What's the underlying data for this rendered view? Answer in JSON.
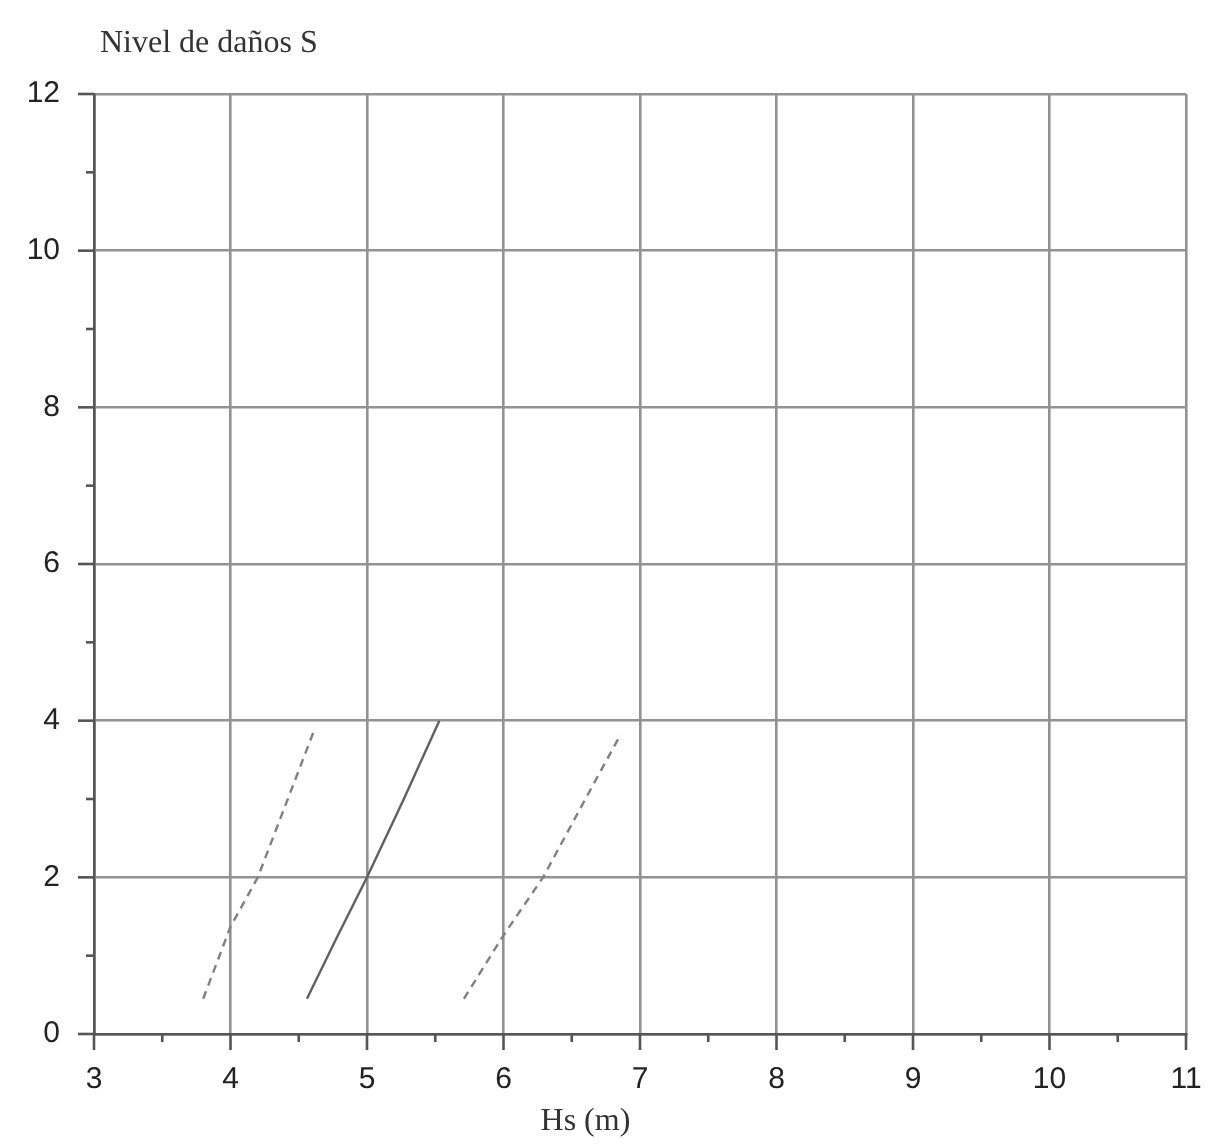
{
  "chart_data": {
    "type": "line",
    "xlabel": "Hs (m)",
    "ylabel": "Nivel de daños S",
    "xlim": [
      3,
      11
    ],
    "ylim": [
      0,
      12
    ],
    "xticks": [
      3,
      {
        "value": 3.5,
        "label": null
      },
      4,
      {
        "value": 4.5,
        "label": null
      },
      5,
      {
        "value": 5.5,
        "label": null
      },
      6,
      {
        "value": 6.5,
        "label": null
      },
      7,
      {
        "value": 7.5,
        "label": null
      },
      8,
      {
        "value": 8.5,
        "label": null
      },
      9,
      {
        "value": 9.5,
        "label": null
      },
      10,
      {
        "value": 10.5,
        "label": null
      },
      11
    ],
    "yticks": [
      0,
      {
        "value": 1,
        "label": null
      },
      2,
      {
        "value": 3,
        "label": null
      },
      4,
      {
        "value": 5,
        "label": null
      },
      6,
      {
        "value": 7,
        "label": null
      },
      8,
      {
        "value": 9,
        "label": null
      },
      10,
      {
        "value": 11,
        "label": null
      },
      12
    ],
    "grid": true,
    "marker": "none",
    "series": [
      {
        "color": "#808080",
        "line_style": "dashed",
        "x": [
          3.8,
          4.0,
          4.2,
          4.62
        ],
        "values": [
          0.45,
          1.37,
          2.0,
          3.91
        ]
      },
      {
        "color": "#606060",
        "line_style": "solid",
        "x": [
          4.56,
          4.77,
          5.0,
          5.27,
          5.53
        ],
        "values": [
          0.45,
          1.2,
          2.0,
          3.0,
          4.0
        ]
      },
      {
        "color": "#808080",
        "line_style": "dashed",
        "x": [
          5.71,
          6.0,
          6.29,
          6.6,
          6.86
        ],
        "values": [
          0.45,
          1.26,
          2.0,
          3.0,
          3.83
        ]
      }
    ]
  }
}
